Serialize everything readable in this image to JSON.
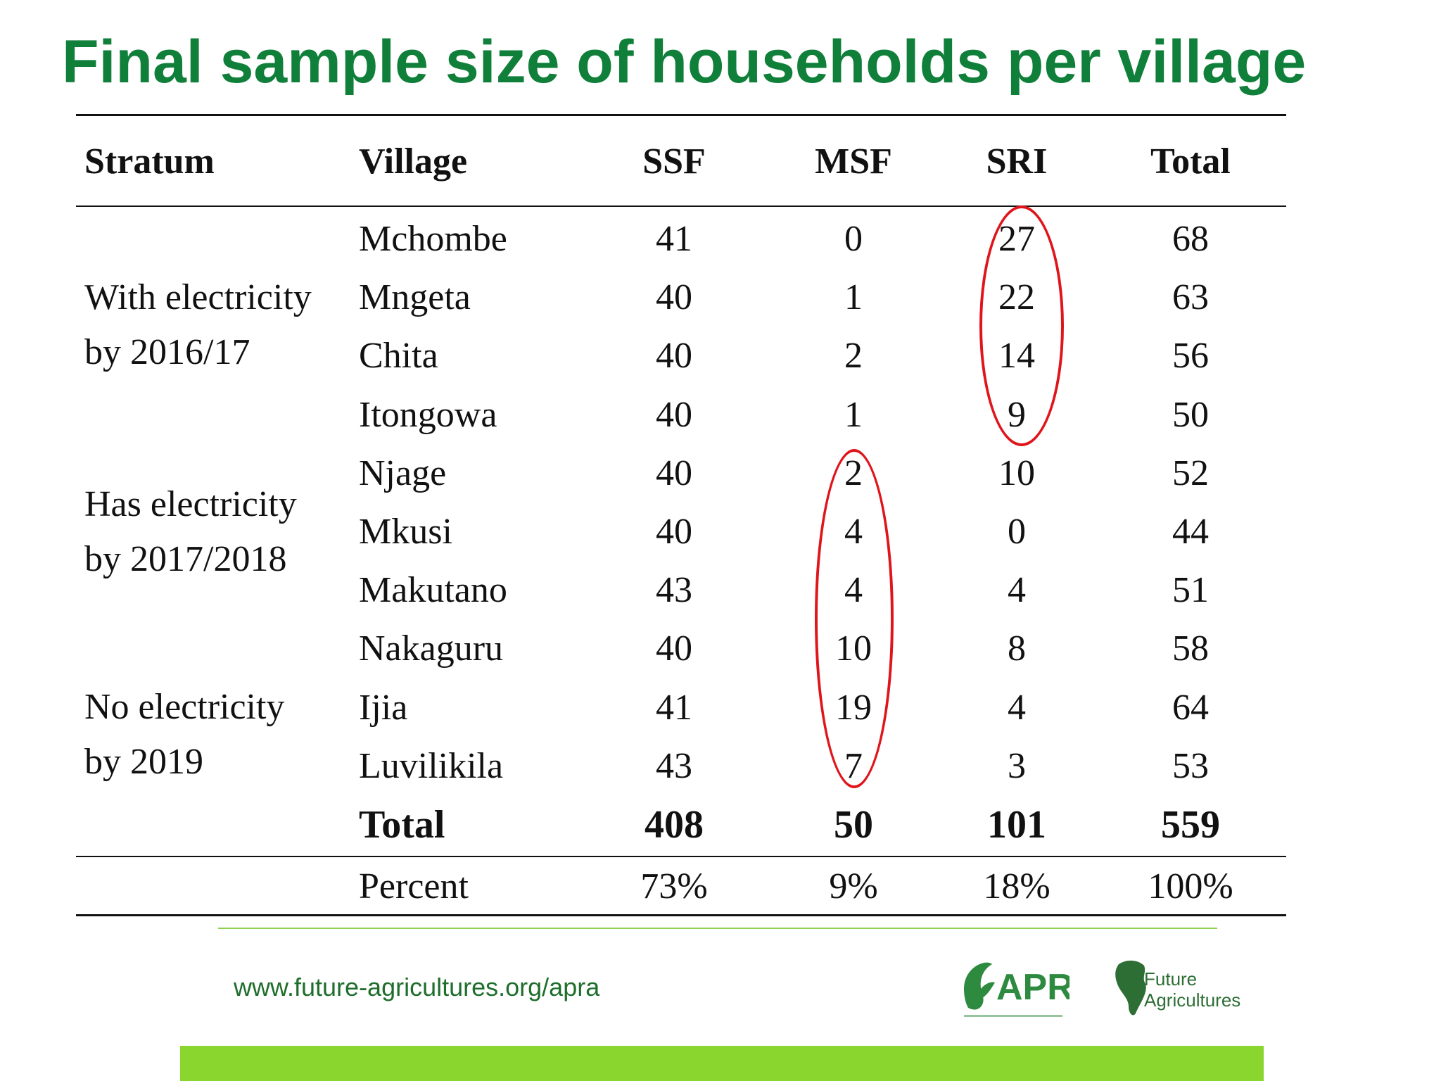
{
  "slide": {
    "title": "Final sample size of households per village",
    "title_color": "#0f7f3a"
  },
  "table": {
    "headers": {
      "stratum": "Stratum",
      "village": "Village",
      "ssf": "SSF",
      "msf": "MSF",
      "sri": "SRI",
      "total": "Total"
    },
    "strata": [
      {
        "line1": "With electricity",
        "line2": "by 2016/17"
      },
      {
        "line1": "Has electricity",
        "line2": "by 2017/2018"
      },
      {
        "line1": "No electricity",
        "line2": "by 2019"
      }
    ],
    "rows": [
      {
        "village": "Mchombe",
        "ssf": "41",
        "msf": "0",
        "sri": "27",
        "total": "68"
      },
      {
        "village": "Mngeta",
        "ssf": "40",
        "msf": "1",
        "sri": "22",
        "total": "63"
      },
      {
        "village": "Chita",
        "ssf": "40",
        "msf": "2",
        "sri": "14",
        "total": "56"
      },
      {
        "village": "Itongowa",
        "ssf": "40",
        "msf": "1",
        "sri": "9",
        "total": "50"
      },
      {
        "village": "Njage",
        "ssf": "40",
        "msf": "2",
        "sri": "10",
        "total": "52"
      },
      {
        "village": "Mkusi",
        "ssf": "40",
        "msf": "4",
        "sri": "0",
        "total": "44"
      },
      {
        "village": "Makutano",
        "ssf": "43",
        "msf": "4",
        "sri": "4",
        "total": "51"
      },
      {
        "village": "Nakaguru",
        "ssf": "40",
        "msf": "10",
        "sri": "8",
        "total": "58"
      },
      {
        "village": "Ijia",
        "ssf": "41",
        "msf": "19",
        "sri": "4",
        "total": "64"
      },
      {
        "village": "Luvilikila",
        "ssf": "43",
        "msf": "7",
        "sri": "3",
        "total": "53"
      }
    ],
    "total_row": {
      "label": "Total",
      "ssf": "408",
      "msf": "50",
      "sri": "101",
      "total": "559"
    },
    "percent_row": {
      "label": "Percent",
      "ssf": "73%",
      "msf": "9%",
      "sri": "18%",
      "total": "100%"
    }
  },
  "annotations": {
    "highlight_color": "#e0151b"
  },
  "footer": {
    "url": "www.future-agricultures.org/apra",
    "url_color": "#1f6e2c",
    "rule_color": "#8fd14f",
    "band_color": "#8ad62f",
    "logos": [
      {
        "text": "APRA",
        "icon": "apra-leaf-icon",
        "color": "#2d8a3e"
      },
      {
        "text1": "Future",
        "text2": "Agricultures",
        "icon": "africa-map-icon",
        "color": "#2d6e34"
      }
    ]
  }
}
